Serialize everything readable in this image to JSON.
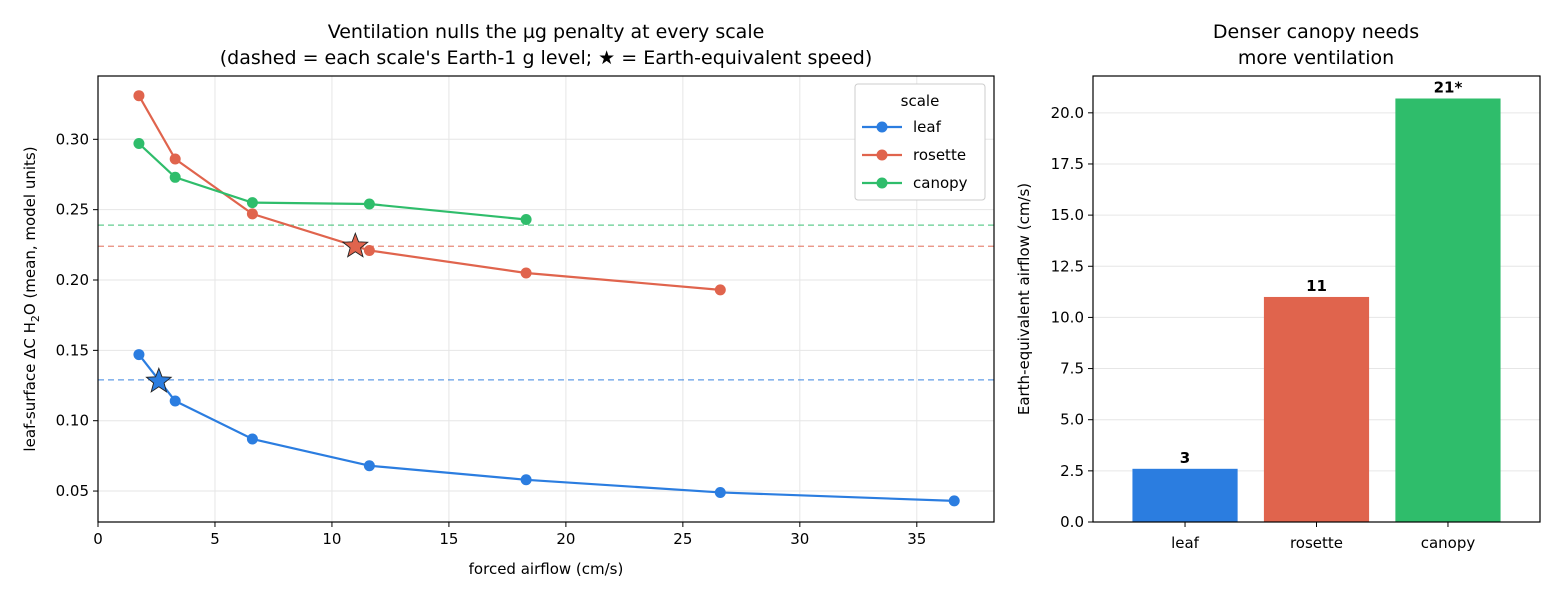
{
  "chart_data": [
    {
      "type": "line",
      "title": "Ventilation nulls the µg penalty at every scale",
      "subtitle": "(dashed = each scale's Earth-1 g level; ★ = Earth-equivalent speed)",
      "xlabel": "forced airflow (cm/s)",
      "ylabel_prefix": "leaf-surface ΔC H",
      "ylabel_sub": "2",
      "ylabel_suffix": "O (mean, model units)",
      "xlim": [
        0,
        38.3
      ],
      "ylim": [
        0.028,
        0.345
      ],
      "xticks": [
        0,
        5,
        10,
        15,
        20,
        25,
        30,
        35
      ],
      "yticks": [
        0.05,
        0.1,
        0.15,
        0.2,
        0.25,
        0.3
      ],
      "grid": true,
      "legend_title": "scale",
      "legend_position": "top-right",
      "series": [
        {
          "name": "leaf",
          "color": "#2b7de0",
          "x": [
            1.75,
            3.3,
            6.6,
            11.6,
            18.3,
            26.6,
            36.6
          ],
          "y": [
            0.147,
            0.114,
            0.087,
            0.068,
            0.058,
            0.049,
            0.043
          ],
          "earth_level": 0.129,
          "star": [
            2.6,
            0.128
          ]
        },
        {
          "name": "rosette",
          "color": "#e0644d",
          "x": [
            1.75,
            3.3,
            6.6,
            11.6,
            18.3,
            26.6
          ],
          "y": [
            0.331,
            0.286,
            0.247,
            0.221,
            0.205,
            0.193
          ],
          "earth_level": 0.224,
          "star": [
            11.0,
            0.224
          ]
        },
        {
          "name": "canopy",
          "color": "#2fbd6b",
          "x": [
            1.75,
            3.3,
            6.6,
            11.6,
            18.3
          ],
          "y": [
            0.297,
            0.273,
            0.255,
            0.254,
            0.243
          ],
          "earth_level": 0.239
        }
      ]
    },
    {
      "type": "bar",
      "title": "Denser canopy needs",
      "subtitle": "more ventilation",
      "ylabel": "Earth-equivalent airflow (cm/s)",
      "categories": [
        "leaf",
        "rosette",
        "canopy"
      ],
      "values": [
        2.6,
        11.0,
        20.7
      ],
      "labels": [
        "3",
        "11",
        "21*"
      ],
      "colors": [
        "#2b7de0",
        "#e0644d",
        "#2fbd6b"
      ],
      "ylim": [
        0,
        21.8
      ],
      "yticks": [
        "0.0",
        "2.5",
        "5.0",
        "7.5",
        "10.0",
        "12.5",
        "15.0",
        "17.5",
        "20.0"
      ],
      "grid": true
    }
  ]
}
